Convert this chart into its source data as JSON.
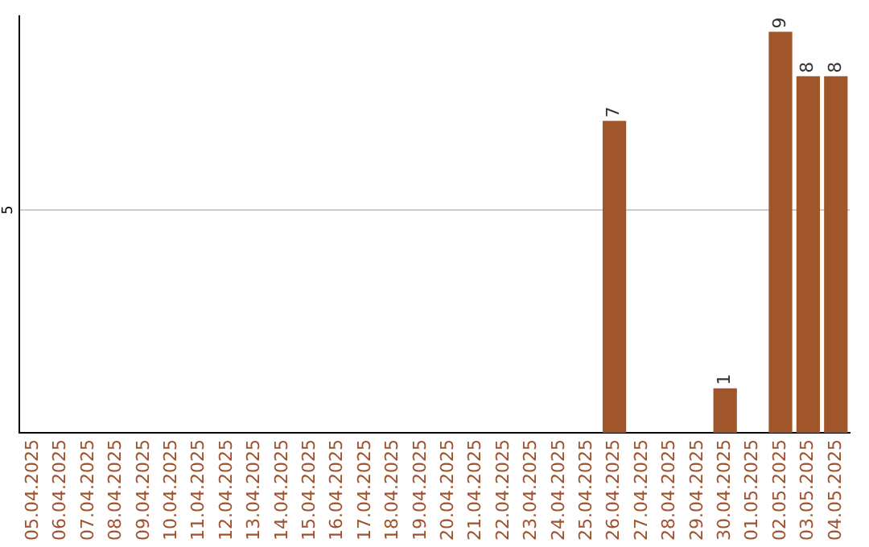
{
  "chart_data": {
    "type": "bar",
    "categories": [
      "05.04.2025",
      "06.04.2025",
      "07.04.2025",
      "08.04.2025",
      "09.04.2025",
      "10.04.2025",
      "11.04.2025",
      "12.04.2025",
      "13.04.2025",
      "14.04.2025",
      "15.04.2025",
      "16.04.2025",
      "17.04.2025",
      "18.04.2025",
      "19.04.2025",
      "20.04.2025",
      "21.04.2025",
      "22.04.2025",
      "23.04.2025",
      "24.04.2025",
      "25.04.2025",
      "26.04.2025",
      "27.04.2025",
      "28.04.2025",
      "29.04.2025",
      "30.04.2025",
      "01.05.2025",
      "02.05.2025",
      "03.05.2025",
      "04.05.2025"
    ],
    "values": [
      null,
      null,
      null,
      null,
      null,
      null,
      null,
      null,
      null,
      null,
      null,
      null,
      null,
      null,
      null,
      null,
      null,
      null,
      null,
      null,
      null,
      7,
      null,
      null,
      null,
      1,
      null,
      9,
      8,
      8
    ],
    "data_labels": true,
    "color": "#a0562a",
    "ylim": [
      0,
      9.35
    ],
    "yticks": [
      5
    ],
    "grid": "y",
    "legend": false
  }
}
